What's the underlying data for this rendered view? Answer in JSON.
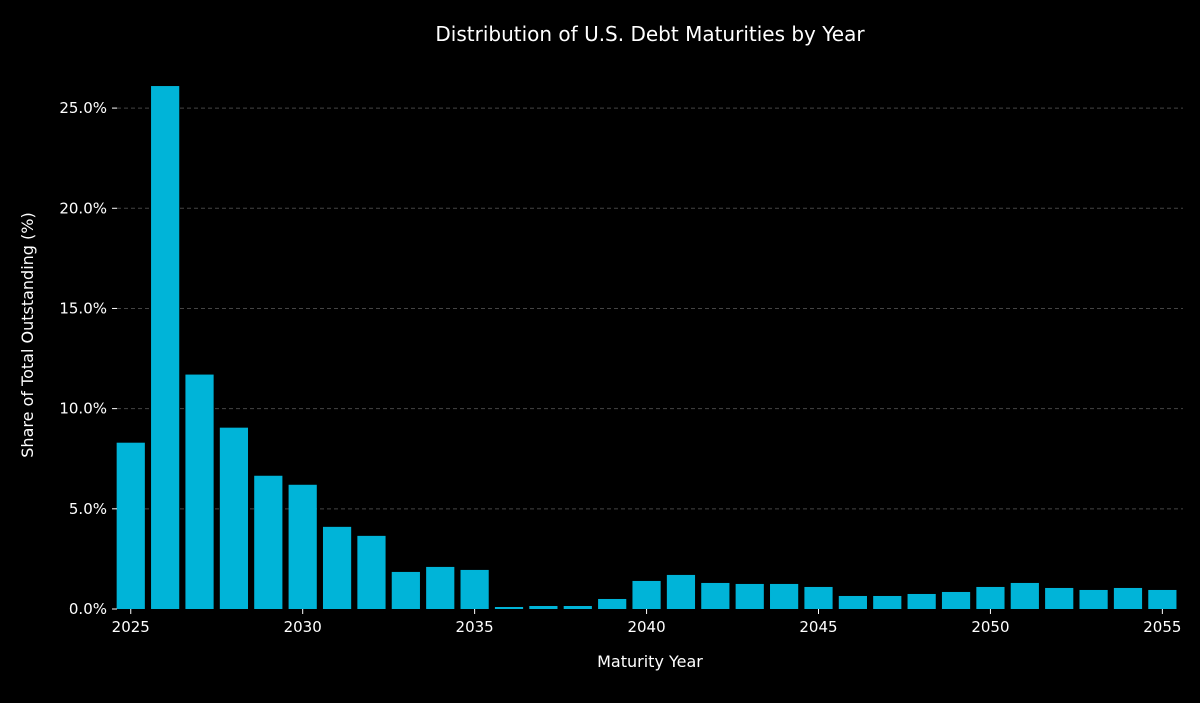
{
  "chart_data": {
    "type": "bar",
    "title": "Distribution of U.S. Debt Maturities by Year",
    "xlabel": "Maturity Year",
    "ylabel": "Share of Total Outstanding (%)",
    "x": [
      2025,
      2026,
      2027,
      2028,
      2029,
      2030,
      2031,
      2032,
      2033,
      2034,
      2035,
      2036,
      2037,
      2038,
      2039,
      2040,
      2041,
      2042,
      2043,
      2044,
      2045,
      2046,
      2047,
      2048,
      2049,
      2050,
      2051,
      2052,
      2053,
      2054,
      2055
    ],
    "values": [
      8.3,
      26.1,
      11.7,
      9.05,
      6.65,
      6.2,
      4.1,
      3.65,
      1.85,
      2.1,
      1.95,
      0.1,
      0.15,
      0.15,
      0.5,
      1.4,
      1.7,
      1.3,
      1.25,
      1.25,
      1.1,
      0.65,
      0.65,
      0.75,
      0.85,
      1.1,
      1.3,
      1.05,
      0.95,
      1.05,
      0.95
    ],
    "xticks": [
      2025,
      2030,
      2035,
      2040,
      2045,
      2050,
      2055
    ],
    "xtick_labels": [
      "2025",
      "2030",
      "2035",
      "2040",
      "2045",
      "2050",
      "2055"
    ],
    "yticks": [
      0,
      5,
      10,
      15,
      20,
      25
    ],
    "ytick_labels": [
      "0.0%",
      "5.0%",
      "10.0%",
      "15.0%",
      "20.0%",
      "25.0%"
    ],
    "xlim": [
      2024.6,
      2055.6
    ],
    "ylim": [
      0,
      27.4
    ],
    "grid": "horizontal-dashed",
    "bar_color": "#00b4d8",
    "background": "#000000",
    "text_color": "#ffffff"
  }
}
